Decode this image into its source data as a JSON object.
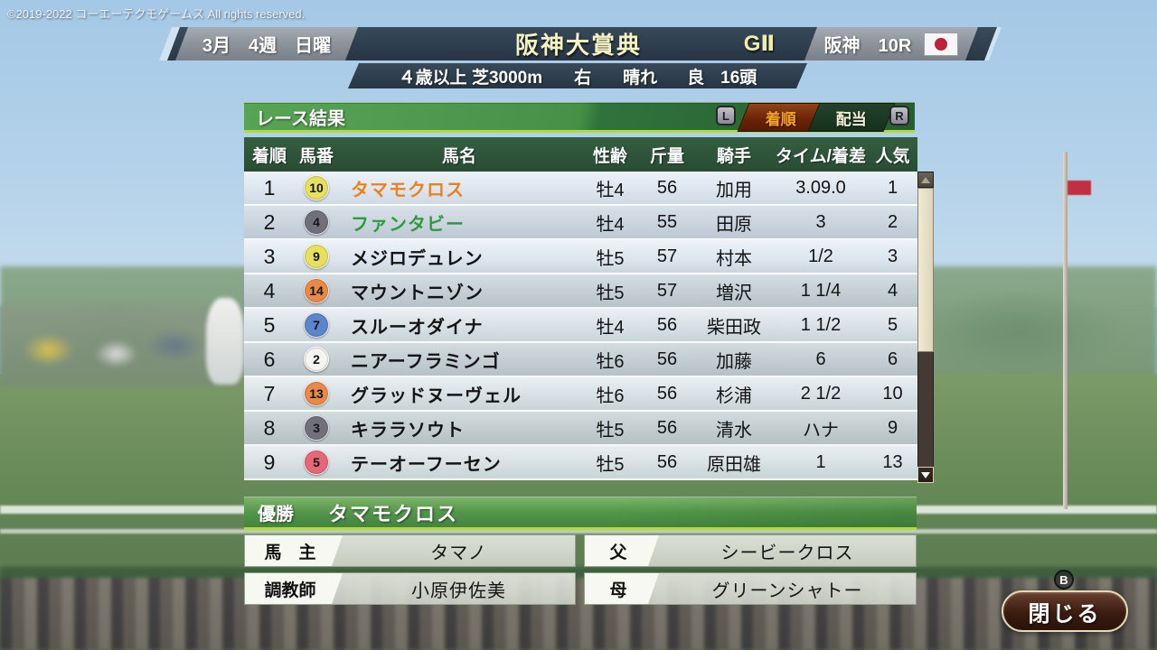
{
  "copyright": "©2019-2022 コーエーテクモゲームス All rights reserved.",
  "header": {
    "date": "3月　4週　日曜",
    "race_name": "阪神大賞典",
    "grade": "GⅡ",
    "venue": "阪神　10R",
    "flag": "japan-flag",
    "conditions": {
      "age_course": "４歳以上 芝3000m",
      "direction": "右",
      "weather": "晴れ",
      "going": "良",
      "field_size": "16頭"
    }
  },
  "panel": {
    "title": "レース結果",
    "left_bumper": "L",
    "right_bumper": "R",
    "tabs": [
      {
        "label": "着順",
        "active": true
      },
      {
        "label": "配当",
        "active": false
      }
    ]
  },
  "results": {
    "columns": [
      "着順",
      "馬番",
      "馬名",
      "性齢",
      "斤量",
      "騎手",
      "タイム/着差",
      "人気"
    ],
    "rows": [
      {
        "place": "1",
        "number": "10",
        "number_color": "#e6e05e",
        "name": "タマモクロス",
        "name_color": "#e8821e",
        "sex_age": "牡4",
        "weight": "56",
        "jockey": "加用",
        "time": "3.09.0",
        "popularity": "1"
      },
      {
        "place": "2",
        "number": "4",
        "number_color": "#70707a",
        "name": "ファンタビー",
        "name_color": "#2e9a3c",
        "sex_age": "牡4",
        "weight": "55",
        "jockey": "田原",
        "time": "3",
        "popularity": "2"
      },
      {
        "place": "3",
        "number": "9",
        "number_color": "#e6e05e",
        "name": "メジロデュレン",
        "name_color": "#141414",
        "sex_age": "牡5",
        "weight": "57",
        "jockey": "村本",
        "time": "1/2",
        "popularity": "3"
      },
      {
        "place": "4",
        "number": "14",
        "number_color": "#e68a4a",
        "name": "マウントニゾン",
        "name_color": "#141414",
        "sex_age": "牡5",
        "weight": "57",
        "jockey": "増沢",
        "time": "1 1/4",
        "popularity": "4"
      },
      {
        "place": "5",
        "number": "7",
        "number_color": "#5c85cc",
        "name": "スルーオダイナ",
        "name_color": "#141414",
        "sex_age": "牡4",
        "weight": "56",
        "jockey": "柴田政",
        "time": "1 1/2",
        "popularity": "5"
      },
      {
        "place": "6",
        "number": "2",
        "number_color": "#f4f4f2",
        "name": "ニアーフラミンゴ",
        "name_color": "#141414",
        "sex_age": "牡6",
        "weight": "56",
        "jockey": "加藤",
        "time": "6",
        "popularity": "6"
      },
      {
        "place": "7",
        "number": "13",
        "number_color": "#e68a4a",
        "name": "グラッドヌーヴェル",
        "name_color": "#141414",
        "sex_age": "牡6",
        "weight": "56",
        "jockey": "杉浦",
        "time": "2 1/2",
        "popularity": "10"
      },
      {
        "place": "8",
        "number": "3",
        "number_color": "#70707a",
        "name": "キララソウト",
        "name_color": "#141414",
        "sex_age": "牡5",
        "weight": "56",
        "jockey": "清水",
        "time": "ハナ",
        "popularity": "9"
      },
      {
        "place": "9",
        "number": "5",
        "number_color": "#e46878",
        "name": "テーオーフーセン",
        "name_color": "#141414",
        "sex_age": "牡5",
        "weight": "56",
        "jockey": "原田雄",
        "time": "1",
        "popularity": "13"
      }
    ]
  },
  "winner": {
    "label": "優勝",
    "name": "タマモクロス",
    "details": [
      {
        "label": "馬　主",
        "value": "タマノ"
      },
      {
        "label": "父",
        "value": "シービークロス"
      },
      {
        "label": "調教師",
        "value": "小原伊佐美"
      },
      {
        "label": "母",
        "value": "グリーンシャトー"
      }
    ]
  },
  "footer": {
    "button_hint": "B",
    "close_label": "閉じる"
  },
  "colors": {
    "accent_green": "#459148",
    "highlight_line": "#b2dc3a",
    "active_tab_bg": "#6a2408",
    "active_tab_text": "#f5a42a",
    "winner_name_color": "#e8821e",
    "second_name_color": "#2e9a3c"
  }
}
